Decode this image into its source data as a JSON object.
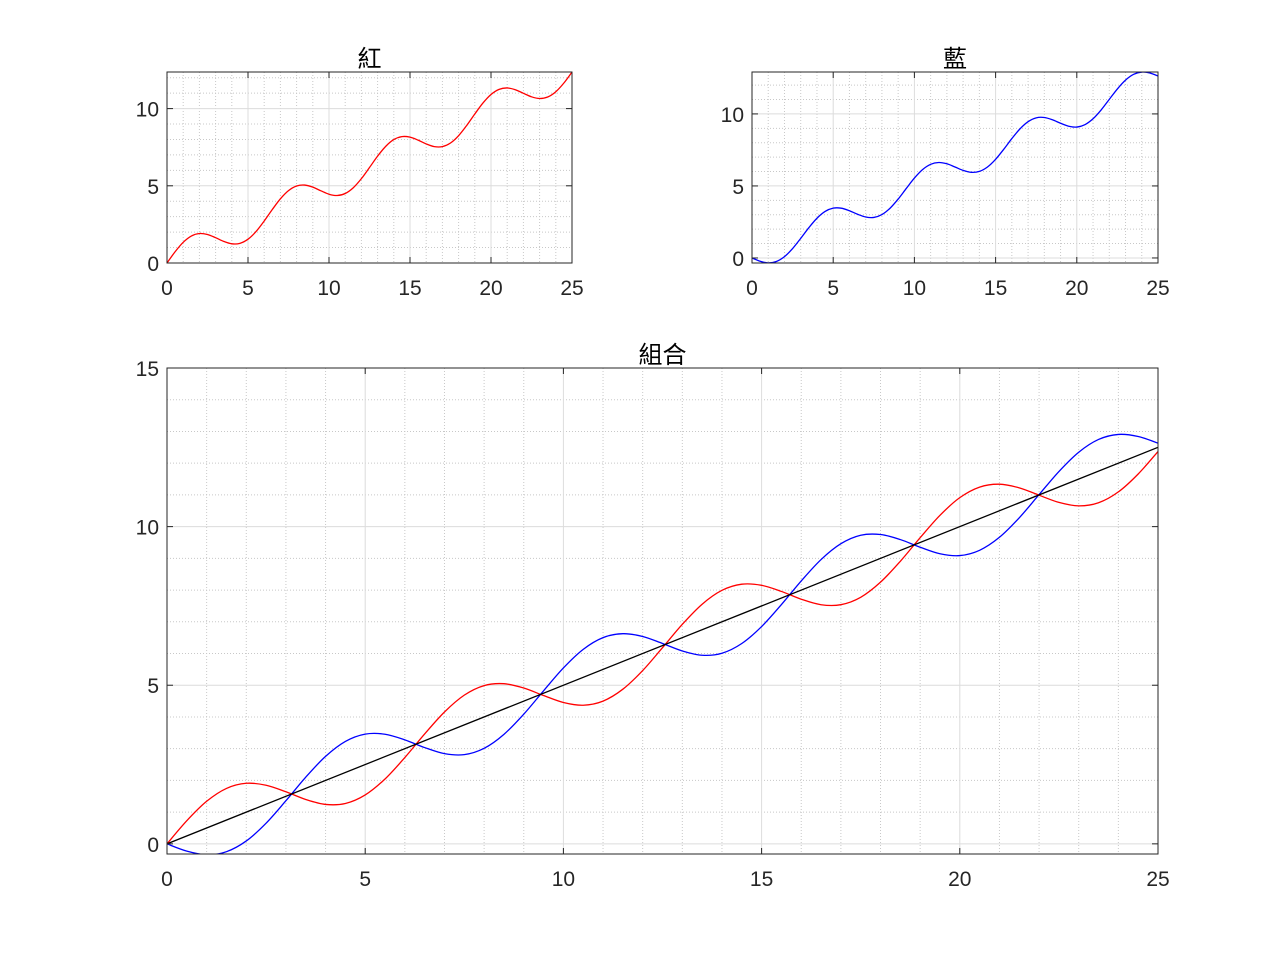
{
  "chart_data": [
    {
      "type": "line",
      "title": "紅",
      "xlim": [
        0,
        25
      ],
      "ylim": [
        0,
        12.37
      ],
      "xticks": [
        0,
        5,
        10,
        15,
        20,
        25
      ],
      "yticks": [
        0,
        5,
        10
      ],
      "grid": true,
      "minor_grid": true,
      "series": [
        {
          "color": "#ff0000",
          "ref": "red"
        }
      ]
    },
    {
      "type": "line",
      "title": "藍",
      "xlim": [
        0,
        25
      ],
      "ylim": [
        -0.35,
        12.91
      ],
      "xticks": [
        0,
        5,
        10,
        15,
        20,
        25
      ],
      "yticks": [
        0,
        5,
        10
      ],
      "grid": true,
      "minor_grid": true,
      "series": [
        {
          "color": "#0000ff",
          "ref": "blue"
        }
      ]
    },
    {
      "type": "line",
      "title": "組合",
      "xlim": [
        0,
        25
      ],
      "ylim": [
        -0.32,
        15
      ],
      "xticks": [
        0,
        5,
        10,
        15,
        20,
        25
      ],
      "yticks": [
        0,
        5,
        10,
        15
      ],
      "grid": true,
      "minor_grid": true,
      "series": [
        {
          "color": "#ff0000",
          "ref": "red"
        },
        {
          "color": "#0000ff",
          "ref": "blue"
        },
        {
          "color": "#000000",
          "ref": "black"
        }
      ]
    }
  ],
  "curves": {
    "x": [
      0,
      0.5,
      1,
      1.5,
      2,
      2.5,
      3,
      3.5,
      4,
      4.5,
      5,
      5.5,
      6,
      6.5,
      7,
      7.5,
      8,
      8.5,
      9,
      9.5,
      10,
      10.5,
      11,
      11.5,
      12,
      12.5,
      13,
      13.5,
      14,
      14.5,
      15,
      15.5,
      16,
      16.5,
      17,
      17.5,
      18,
      18.5,
      19,
      19.5,
      20,
      20.5,
      21,
      21.5,
      22,
      22.5,
      23,
      23.5,
      24,
      24.5,
      25
    ],
    "red": [
      0,
      0.729,
      1.341,
      1.747,
      1.909,
      1.848,
      1.641,
      1.399,
      1.243,
      1.272,
      1.541,
      2.044,
      2.721,
      3.465,
      4.157,
      4.688,
      4.989,
      5.048,
      4.912,
      4.675,
      4.456,
      4.37,
      4.5,
      4.875,
      5.463,
      6.184,
      6.92,
      7.554,
      7.991,
      8.185,
      8.15,
      7.957,
      7.712,
      7.538,
      7.539,
      7.772,
      8.249,
      8.908,
      9.65,
      10.356,
      10.913,
      11.246,
      11.337,
      11.222,
      10.991,
      10.763,
      10.654,
      10.752,
      11.094,
      11.659,
      12.368
    ],
    "blue": [
      0,
      -0.229,
      -0.341,
      -0.247,
      0.091,
      0.652,
      1.359,
      2.101,
      2.757,
      3.228,
      3.459,
      3.456,
      3.279,
      3.035,
      2.843,
      2.812,
      3.011,
      3.452,
      4.088,
      4.825,
      5.544,
      6.13,
      6.5,
      6.625,
      6.537,
      6.316,
      6.08,
      5.946,
      6.009,
      6.315,
      6.85,
      7.543,
      8.288,
      8.962,
      9.461,
      9.728,
      9.751,
      9.592,
      9.35,
      9.144,
      9.087,
      9.254,
      9.663,
      10.278,
      11.009,
      11.737,
      12.346,
      12.748,
      12.906,
      12.841,
      12.632
    ],
    "black_x": [
      0,
      25
    ],
    "black": [
      0,
      12.5
    ]
  }
}
